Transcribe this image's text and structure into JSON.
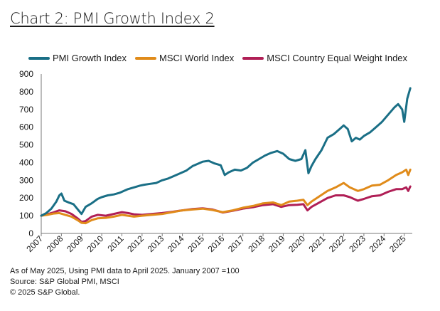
{
  "title": "Chart 2: PMI Growth Index 2",
  "notes": [
    "As of May 2025, Using PMI data to April 2025. January 2007 =100",
    "Source: S&P Global PMI, MSCI",
    "© 2025 S&P Global."
  ],
  "chart_data": {
    "type": "line",
    "title": "Chart 2: PMI Growth Index 2",
    "xlabel": "",
    "ylabel": "",
    "ylim": [
      0,
      900
    ],
    "yticks": [
      0,
      100,
      200,
      300,
      400,
      500,
      600,
      700,
      800,
      900
    ],
    "xticks": [
      "2007",
      "2008",
      "2009",
      "2010",
      "2011",
      "2012",
      "2013",
      "2014",
      "2015",
      "2016",
      "2017",
      "2018",
      "2019",
      "2020",
      "2021",
      "2022",
      "2023",
      "2024",
      "2025"
    ],
    "xlim": [
      2007,
      2025.4
    ],
    "grid": false,
    "legend_position": "top",
    "series": [
      {
        "name": "PMI Growth Index",
        "color": "#1a6f86",
        "x": [
          2007.0,
          2007.25,
          2007.5,
          2007.75,
          2007.9,
          2008.0,
          2008.15,
          2008.35,
          2008.6,
          2008.85,
          2009.0,
          2009.2,
          2009.5,
          2009.8,
          2010.0,
          2010.3,
          2010.6,
          2010.9,
          2011.1,
          2011.3,
          2011.6,
          2011.9,
          2012.1,
          2012.4,
          2012.7,
          2013.0,
          2013.3,
          2013.6,
          2013.9,
          2014.2,
          2014.5,
          2014.8,
          2015.0,
          2015.3,
          2015.6,
          2015.9,
          2016.1,
          2016.3,
          2016.6,
          2016.9,
          2017.2,
          2017.5,
          2017.8,
          2018.1,
          2018.4,
          2018.7,
          2019.0,
          2019.3,
          2019.6,
          2019.9,
          2020.1,
          2020.25,
          2020.4,
          2020.6,
          2020.9,
          2021.2,
          2021.5,
          2021.8,
          2022.0,
          2022.2,
          2022.4,
          2022.6,
          2022.8,
          2023.0,
          2023.3,
          2023.6,
          2023.9,
          2024.2,
          2024.5,
          2024.7,
          2024.9,
          2025.0,
          2025.15,
          2025.3
        ],
        "values": [
          100,
          115,
          140,
          180,
          215,
          225,
          185,
          175,
          165,
          130,
          110,
          150,
          170,
          195,
          205,
          215,
          220,
          230,
          240,
          250,
          260,
          270,
          275,
          280,
          285,
          300,
          310,
          325,
          340,
          355,
          380,
          395,
          405,
          410,
          395,
          385,
          330,
          345,
          360,
          355,
          370,
          400,
          420,
          440,
          455,
          465,
          450,
          420,
          410,
          420,
          470,
          340,
          380,
          420,
          470,
          540,
          560,
          590,
          610,
          590,
          520,
          540,
          530,
          550,
          570,
          600,
          630,
          670,
          710,
          730,
          700,
          630,
          760,
          820
        ]
      },
      {
        "name": "MSCI World Index",
        "color": "#e08b1a",
        "x": [
          2007.0,
          2007.3,
          2007.6,
          2007.9,
          2008.2,
          2008.5,
          2008.8,
          2009.0,
          2009.2,
          2009.5,
          2009.8,
          2010.2,
          2010.6,
          2011.0,
          2011.3,
          2011.6,
          2012.0,
          2012.5,
          2013.0,
          2013.5,
          2014.0,
          2014.5,
          2015.0,
          2015.5,
          2016.0,
          2016.5,
          2017.0,
          2017.5,
          2018.0,
          2018.5,
          2018.9,
          2019.3,
          2019.7,
          2020.0,
          2020.2,
          2020.4,
          2020.8,
          2021.2,
          2021.6,
          2022.0,
          2022.3,
          2022.7,
          2023.0,
          2023.4,
          2023.8,
          2024.2,
          2024.6,
          2024.9,
          2025.1,
          2025.2,
          2025.3
        ],
        "values": [
          100,
          105,
          112,
          115,
          105,
          95,
          75,
          60,
          58,
          75,
          85,
          88,
          95,
          105,
          100,
          95,
          100,
          105,
          110,
          120,
          130,
          135,
          140,
          132,
          120,
          130,
          145,
          155,
          170,
          175,
          160,
          180,
          185,
          190,
          160,
          180,
          210,
          240,
          260,
          285,
          260,
          240,
          250,
          270,
          275,
          300,
          330,
          345,
          360,
          330,
          360
        ]
      },
      {
        "name": "MSCI Country Equal Weight Index",
        "color": "#b01f56",
        "x": [
          2007.0,
          2007.3,
          2007.6,
          2007.9,
          2008.2,
          2008.5,
          2008.8,
          2009.0,
          2009.2,
          2009.5,
          2009.8,
          2010.2,
          2010.6,
          2011.0,
          2011.3,
          2011.6,
          2012.0,
          2012.5,
          2013.0,
          2013.5,
          2014.0,
          2014.5,
          2015.0,
          2015.5,
          2016.0,
          2016.5,
          2017.0,
          2017.5,
          2018.0,
          2018.5,
          2018.9,
          2019.3,
          2019.7,
          2020.0,
          2020.2,
          2020.4,
          2020.8,
          2021.2,
          2021.6,
          2022.0,
          2022.3,
          2022.7,
          2023.0,
          2023.4,
          2023.8,
          2024.2,
          2024.6,
          2024.9,
          2025.1,
          2025.2,
          2025.3
        ],
        "values": [
          100,
          108,
          118,
          130,
          125,
          110,
          85,
          65,
          70,
          95,
          105,
          100,
          110,
          120,
          115,
          108,
          105,
          110,
          115,
          122,
          130,
          138,
          142,
          135,
          118,
          128,
          140,
          148,
          160,
          165,
          150,
          160,
          162,
          165,
          130,
          150,
          175,
          200,
          215,
          215,
          205,
          185,
          195,
          210,
          215,
          235,
          250,
          250,
          260,
          240,
          265
        ]
      }
    ]
  }
}
